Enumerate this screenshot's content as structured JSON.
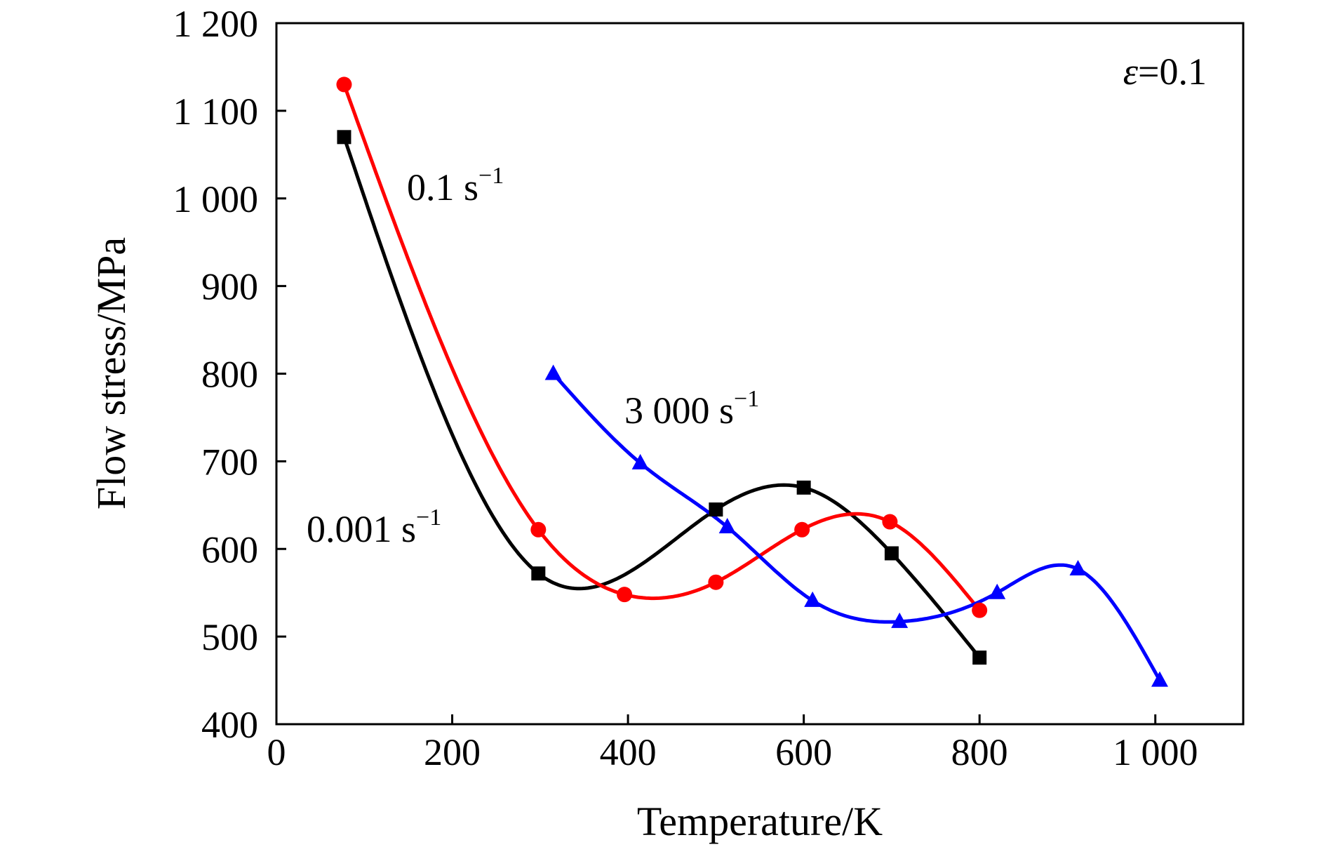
{
  "chart_data": {
    "type": "line",
    "title": "",
    "xlabel": "Temperature/K",
    "ylabel": "Flow stress/MPa",
    "xlim": [
      0,
      1100
    ],
    "ylim": [
      400,
      1200
    ],
    "xticks": [
      0,
      200,
      400,
      600,
      800,
      1000
    ],
    "xtick_labels": [
      "0",
      "200",
      "400",
      "600",
      "800",
      "1 000"
    ],
    "yticks": [
      400,
      500,
      600,
      700,
      800,
      900,
      1000,
      1100,
      1200
    ],
    "ytick_labels": [
      "400",
      "500",
      "600",
      "700",
      "800",
      "900",
      "1 000",
      "1 100",
      "1 200"
    ],
    "grid": false,
    "strain_label": {
      "symbol": "ε",
      "text": "=0.1"
    },
    "series": [
      {
        "name": "0.001 s⁻¹",
        "label_main": "0.001 s",
        "label_sup": "−1",
        "color": "#000000",
        "marker": "square",
        "x": [
          77,
          298,
          500,
          600,
          700,
          800
        ],
        "y": [
          1070,
          572,
          645,
          670,
          595,
          476
        ]
      },
      {
        "name": "0.1 s⁻¹",
        "label_main": "0.1 s",
        "label_sup": "−1",
        "color": "#ff0000",
        "marker": "circle",
        "x": [
          77,
          298,
          396,
          500,
          598,
          698,
          800
        ],
        "y": [
          1130,
          622,
          548,
          562,
          622,
          631,
          530
        ]
      },
      {
        "name": "3 000 s⁻¹",
        "label_main": "3 000 s",
        "label_sup": "−1",
        "color": "#0000ff",
        "marker": "triangle",
        "x": [
          315,
          414,
          513,
          610,
          709,
          820,
          912,
          1005
        ],
        "y": [
          800,
          698,
          625,
          541,
          517,
          550,
          577,
          450
        ]
      }
    ]
  }
}
